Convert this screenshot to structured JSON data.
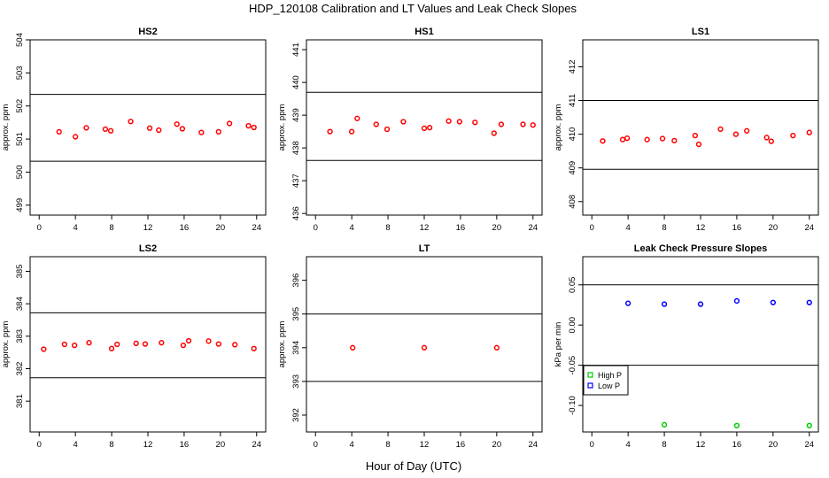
{
  "figure": {
    "title": "HDP_120108  Calibration and LT Values and Leak Check Slopes",
    "xlabel": "Hour of Day (UTC)"
  },
  "chart_data": [
    {
      "type": "scatter",
      "title": "HS2",
      "ylabel": "approx. ppm",
      "xlim": [
        -1,
        25
      ],
      "ylim": [
        498.7,
        504
      ],
      "xticks": [
        0,
        4,
        8,
        12,
        16,
        20,
        24
      ],
      "yticks": [
        499,
        500,
        501,
        502,
        503,
        504
      ],
      "hlines": [
        502.35,
        500.33
      ],
      "series": [
        {
          "color": "#ff0000",
          "marker": "circle",
          "x": [
            2.2,
            4,
            5.2,
            7.3,
            7.9,
            10.1,
            12.2,
            13.2,
            15.2,
            15.8,
            17.9,
            19.8,
            21,
            23.1,
            23.7
          ],
          "y": [
            501.22,
            501.07,
            501.34,
            501.3,
            501.25,
            501.53,
            501.33,
            501.27,
            501.45,
            501.31,
            501.2,
            501.22,
            501.47,
            501.4,
            501.35
          ]
        }
      ]
    },
    {
      "type": "scatter",
      "title": "HS1",
      "ylabel": "approx. ppm",
      "xlim": [
        -1,
        25
      ],
      "ylim": [
        435.95,
        441.3
      ],
      "xticks": [
        0,
        4,
        8,
        12,
        16,
        20,
        24
      ],
      "yticks": [
        436,
        437,
        438,
        439,
        440,
        441
      ],
      "hlines": [
        439.7,
        437.62
      ],
      "series": [
        {
          "color": "#ff0000",
          "marker": "circle",
          "x": [
            1.6,
            4,
            4.6,
            6.7,
            7.9,
            9.7,
            12,
            12.6,
            14.7,
            15.9,
            17.6,
            19.7,
            20.5,
            22.9,
            24
          ],
          "y": [
            438.5,
            438.5,
            438.9,
            438.72,
            438.57,
            438.8,
            438.6,
            438.62,
            438.82,
            438.8,
            438.78,
            438.45,
            438.72,
            438.72,
            438.7
          ]
        }
      ]
    },
    {
      "type": "scatter",
      "title": "LS1",
      "ylabel": "approx. ppm",
      "xlim": [
        -1,
        25
      ],
      "ylim": [
        407.6,
        412.8
      ],
      "xticks": [
        0,
        4,
        8,
        12,
        16,
        20,
        24
      ],
      "yticks": [
        408,
        409,
        410,
        411,
        412
      ],
      "hlines": [
        411,
        408.96
      ],
      "series": [
        {
          "color": "#ff0000",
          "marker": "circle",
          "x": [
            1.2,
            3.4,
            3.9,
            6.1,
            7.8,
            9.1,
            11.4,
            11.8,
            14.2,
            15.9,
            17.1,
            19.3,
            19.8,
            22.2,
            24
          ],
          "y": [
            409.8,
            409.84,
            409.88,
            409.84,
            409.87,
            409.81,
            409.96,
            409.7,
            410.15,
            410,
            410.1,
            409.9,
            409.79,
            409.96,
            410.05
          ]
        }
      ]
    },
    {
      "type": "scatter",
      "title": "LS2",
      "ylabel": "approx. ppm",
      "xlim": [
        -1,
        25
      ],
      "ylim": [
        380.05,
        385.45
      ],
      "xticks": [
        0,
        4,
        8,
        12,
        16,
        20,
        24
      ],
      "yticks": [
        381,
        382,
        383,
        384,
        385
      ],
      "hlines": [
        383.72,
        381.72
      ],
      "series": [
        {
          "color": "#ff0000",
          "marker": "circle",
          "x": [
            0.5,
            2.8,
            3.9,
            5.5,
            8,
            8.6,
            10.7,
            11.7,
            13.5,
            15.9,
            16.5,
            18.7,
            19.8,
            21.6,
            23.7
          ],
          "y": [
            382.6,
            382.75,
            382.72,
            382.8,
            382.62,
            382.75,
            382.78,
            382.76,
            382.8,
            382.72,
            382.86,
            382.85,
            382.76,
            382.74,
            382.62
          ]
        }
      ]
    },
    {
      "type": "scatter",
      "title": "LT",
      "ylabel": "approx. ppm",
      "xlim": [
        -1,
        25
      ],
      "ylim": [
        391.5,
        396.7
      ],
      "xticks": [
        0,
        4,
        8,
        12,
        16,
        20,
        24
      ],
      "yticks": [
        392,
        393,
        394,
        395,
        396
      ],
      "hlines": [
        395,
        393
      ],
      "series": [
        {
          "color": "#ff0000",
          "marker": "circle",
          "x": [
            4.1,
            12,
            20
          ],
          "y": [
            394,
            394,
            394
          ]
        }
      ]
    },
    {
      "type": "scatter",
      "title": "Leak Check Pressure Slopes",
      "ylabel": "kPa per min",
      "xlim": [
        -1,
        25
      ],
      "ylim": [
        -0.133,
        0.085
      ],
      "xticks": [
        0,
        4,
        8,
        12,
        16,
        20,
        24
      ],
      "yticks": [
        -0.1,
        -0.05,
        0,
        0.05
      ],
      "ytick_labels": [
        "-0.10",
        "-0.05",
        "0.00",
        "0.05"
      ],
      "hlines": [
        0.05,
        -0.05
      ],
      "legend": {
        "placement": "middle-left",
        "entries": [
          "High P",
          "Low P"
        ]
      },
      "series": [
        {
          "name": "High P",
          "color": "#00cc00",
          "marker": "circle",
          "x": [
            8,
            16,
            24
          ],
          "y": [
            -0.124,
            -0.125,
            -0.125
          ]
        },
        {
          "name": "Low P",
          "color": "#0000ff",
          "marker": "circle",
          "x": [
            4,
            8,
            12,
            16,
            20,
            24
          ],
          "y": [
            0.027,
            0.026,
            0.026,
            0.03,
            0.028,
            0.028
          ]
        }
      ]
    }
  ]
}
